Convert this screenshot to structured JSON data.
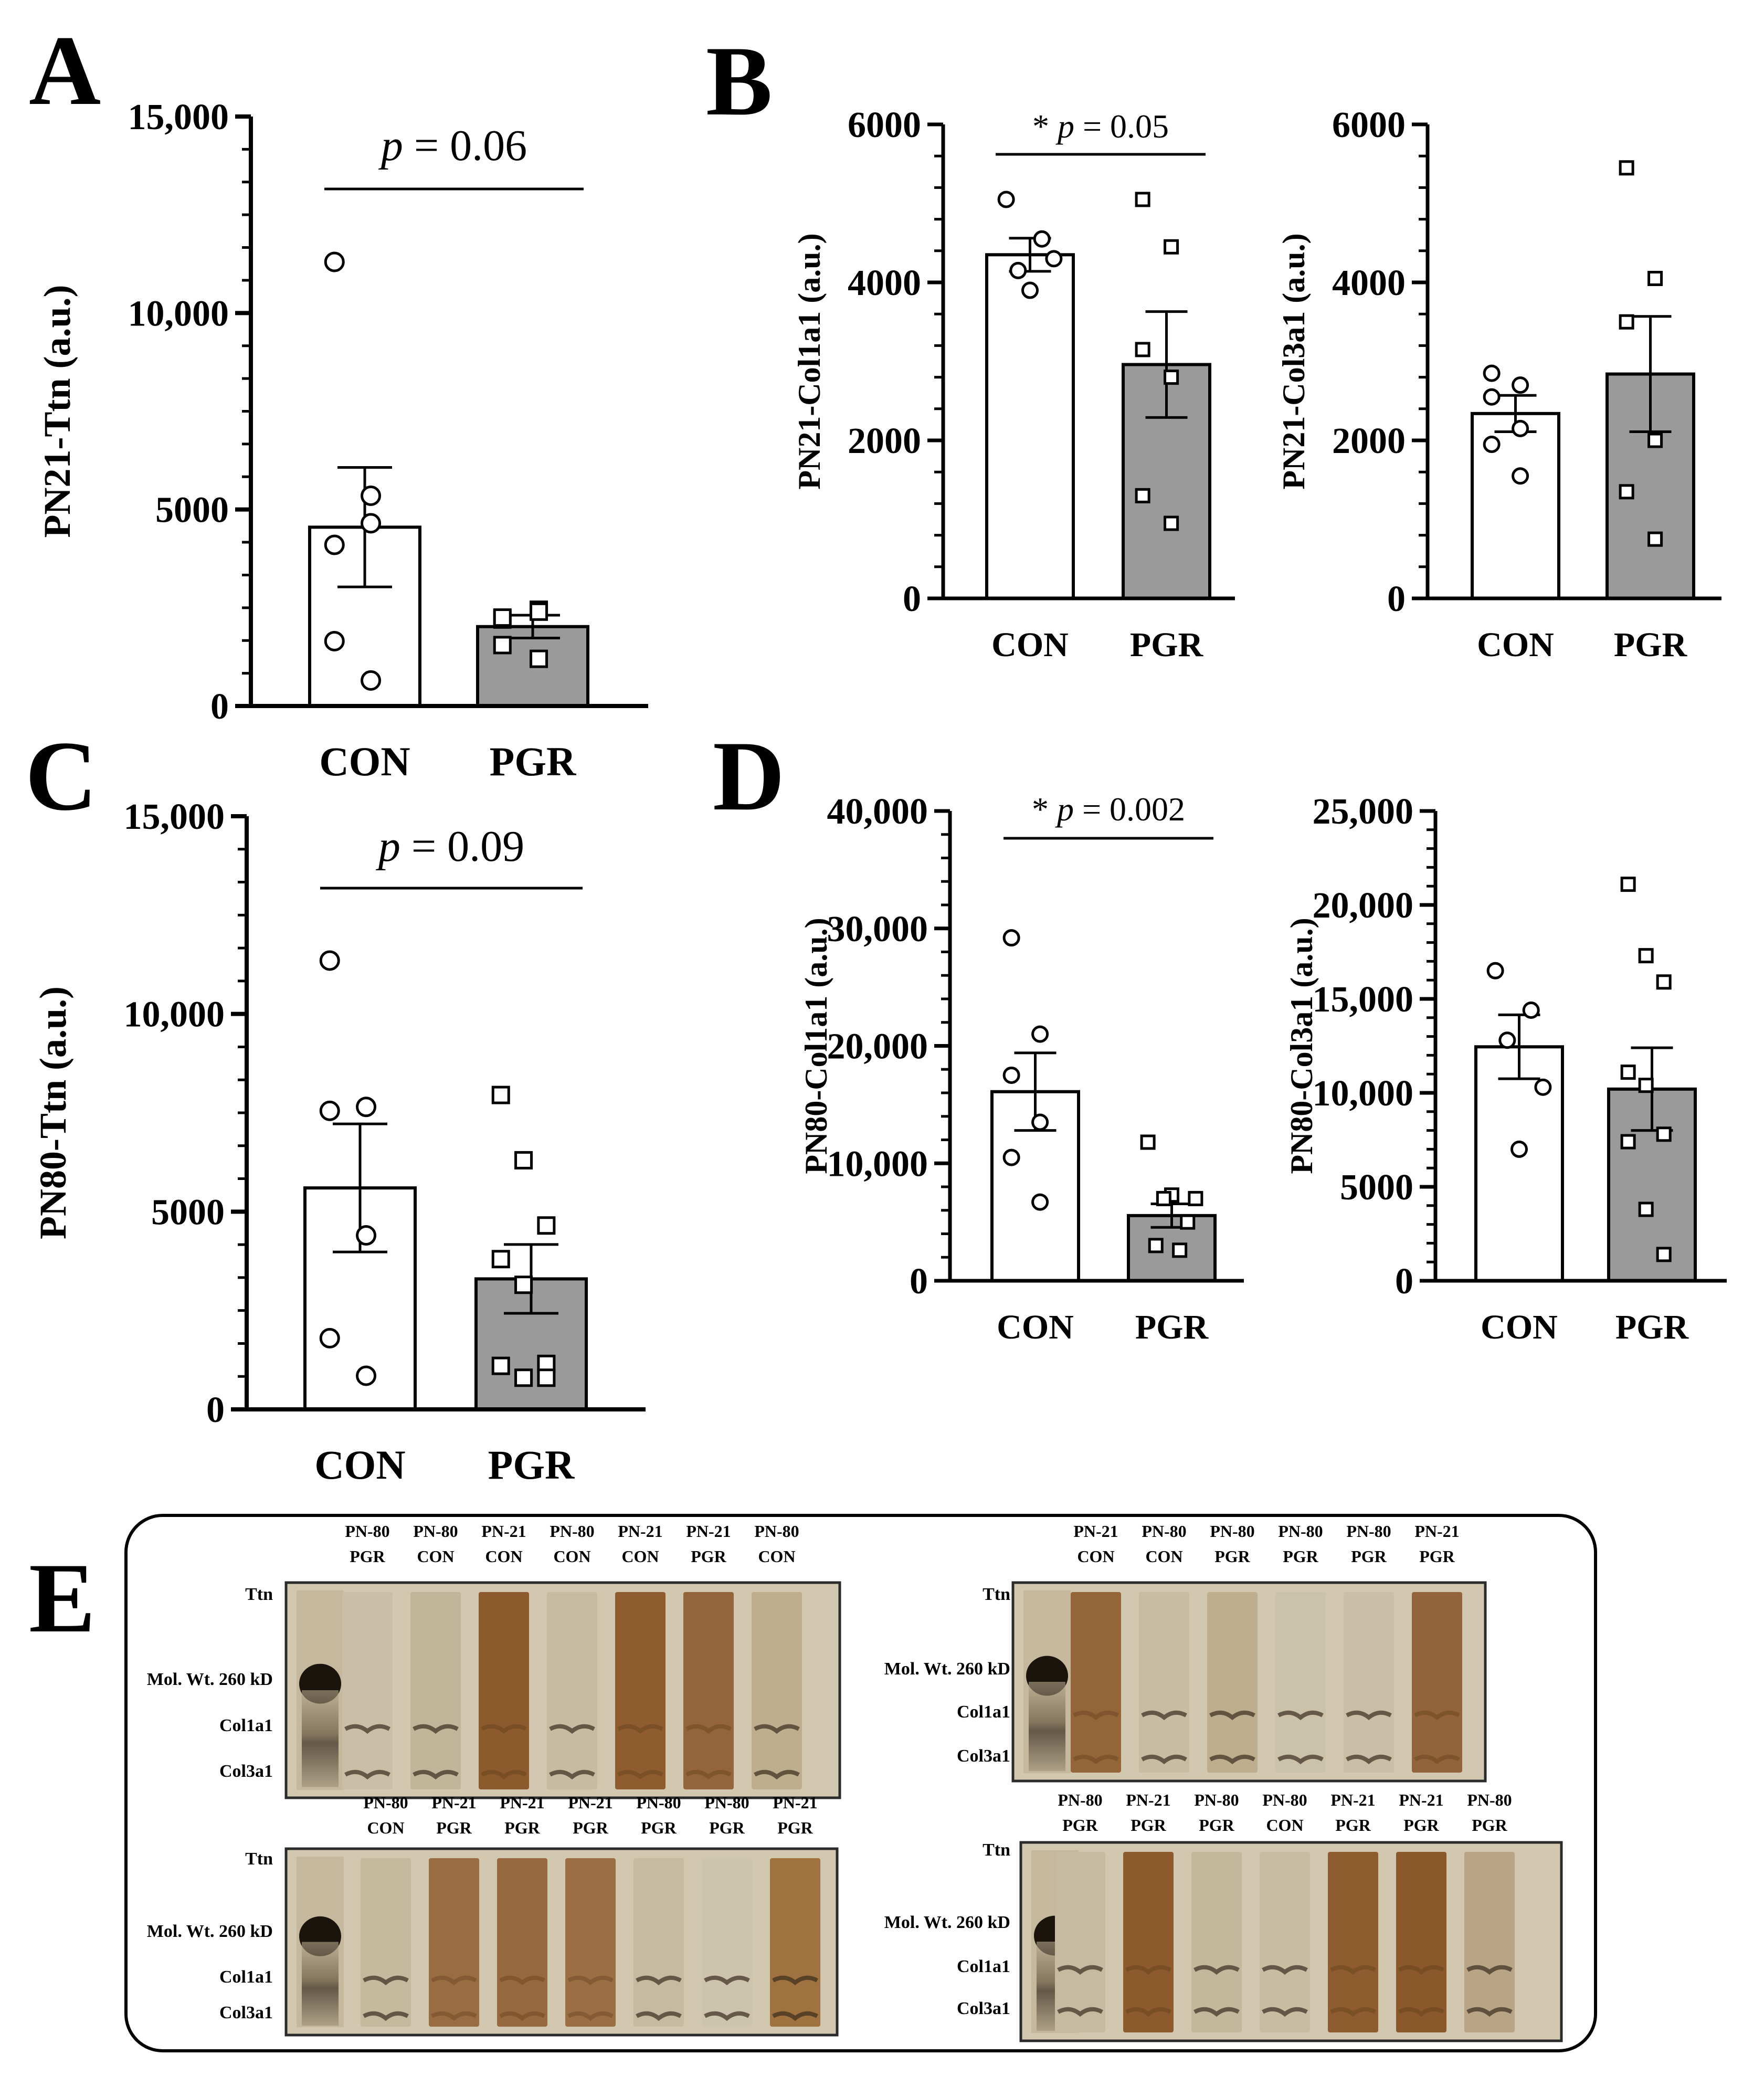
{
  "figure": {
    "panel_labels": [
      "A",
      "B",
      "C",
      "D",
      "E"
    ]
  },
  "chart_data": [
    {
      "id": "A",
      "type": "bar",
      "ylabel": "PN21-Ttn (a.u.)",
      "ylim": [
        0,
        15000
      ],
      "yticks": [
        {
          "v": 0,
          "label": "0"
        },
        {
          "v": 5000,
          "label": "5000"
        },
        {
          "v": 10000,
          "label": "10,000"
        },
        {
          "v": 15000,
          "label": "15,000"
        }
      ],
      "categories": [
        "CON",
        "PGR"
      ],
      "means": [
        4550,
        2020
      ],
      "sem": [
        1520,
        290
      ],
      "points": [
        [
          11300,
          5350,
          4100,
          4650,
          1650,
          650
        ],
        [
          2200,
          2450,
          2250,
          2400,
          1550,
          1200
        ]
      ],
      "annotation": {
        "italic": "p",
        "rest": " = 0.06"
      },
      "colors": [
        "#ffffff",
        "#9a9a9a"
      ]
    },
    {
      "id": "B1",
      "type": "bar",
      "ylabel": "PN21-Col1a1 (a.u.)",
      "ylim": [
        0,
        6000
      ],
      "yticks": [
        {
          "v": 0,
          "label": "0"
        },
        {
          "v": 2000,
          "label": "2000"
        },
        {
          "v": 4000,
          "label": "4000"
        },
        {
          "v": 6000,
          "label": "6000"
        }
      ],
      "categories": [
        "CON",
        "PGR"
      ],
      "means": [
        4350,
        2960
      ],
      "sem": [
        210,
        670
      ],
      "points": [
        [
          5050,
          4550,
          4150,
          4300,
          3900
        ],
        [
          5050,
          4450,
          3150,
          2800,
          1300,
          950
        ]
      ],
      "annotation": {
        "prefix": "* ",
        "italic": "p",
        "rest": " = 0.05"
      },
      "colors": [
        "#ffffff",
        "#9a9a9a"
      ]
    },
    {
      "id": "B2",
      "type": "bar",
      "ylabel": "PN21-Col3a1 (a.u.)",
      "ylim": [
        0,
        6000
      ],
      "yticks": [
        {
          "v": 0,
          "label": "0"
        },
        {
          "v": 2000,
          "label": "2000"
        },
        {
          "v": 4000,
          "label": "4000"
        },
        {
          "v": 6000,
          "label": "6000"
        }
      ],
      "categories": [
        "CON",
        "PGR"
      ],
      "means": [
        2340,
        2840
      ],
      "sem": [
        230,
        730
      ],
      "points": [
        [
          2850,
          2700,
          2550,
          2150,
          1950,
          1550
        ],
        [
          5450,
          4050,
          3500,
          2000,
          1350,
          750
        ]
      ],
      "colors": [
        "#ffffff",
        "#9a9a9a"
      ]
    },
    {
      "id": "C",
      "type": "bar",
      "ylabel": "PN80-Ttn (a.u.)",
      "ylim": [
        0,
        15000
      ],
      "yticks": [
        {
          "v": 0,
          "label": "0"
        },
        {
          "v": 5000,
          "label": "5000"
        },
        {
          "v": 10000,
          "label": "10,000"
        },
        {
          "v": 15000,
          "label": "15,000"
        }
      ],
      "categories": [
        "CON",
        "PGR"
      ],
      "means": [
        5600,
        3300
      ],
      "sem": [
        1620,
        870
      ],
      "points": [
        [
          11350,
          7650,
          7550,
          4400,
          1800,
          850
        ],
        [
          7950,
          6300,
          4650,
          3800,
          3150,
          1150,
          1100,
          800,
          800
        ]
      ],
      "annotation": {
        "italic": "p",
        "rest": " = 0.09"
      },
      "colors": [
        "#ffffff",
        "#9a9a9a"
      ]
    },
    {
      "id": "D1",
      "type": "bar",
      "ylabel": "PN80-Col1a1 (a.u.)",
      "ylim": [
        0,
        40000
      ],
      "yticks": [
        {
          "v": 0,
          "label": "0"
        },
        {
          "v": 10000,
          "label": "10,000"
        },
        {
          "v": 20000,
          "label": "20,000"
        },
        {
          "v": 30000,
          "label": "30,000"
        },
        {
          "v": 40000,
          "label": "40,000"
        }
      ],
      "categories": [
        "CON",
        "PGR"
      ],
      "means": [
        16100,
        5550
      ],
      "sem": [
        3300,
        1000
      ],
      "points": [
        [
          29200,
          21000,
          17500,
          13500,
          10500,
          6700
        ],
        [
          11800,
          7300,
          7000,
          7000,
          5000,
          3000,
          2600
        ]
      ],
      "annotation": {
        "prefix": "* ",
        "italic": "p",
        "rest": " = 0.002"
      },
      "colors": [
        "#ffffff",
        "#9a9a9a"
      ]
    },
    {
      "id": "D2",
      "type": "bar",
      "ylabel": "PN80-Col3a1 (a.u.)",
      "ylim": [
        0,
        25000
      ],
      "yticks": [
        {
          "v": 0,
          "label": "0"
        },
        {
          "v": 5000,
          "label": "5000"
        },
        {
          "v": 10000,
          "label": "10,000"
        },
        {
          "v": 15000,
          "label": "15,000"
        },
        {
          "v": 20000,
          "label": "20,000"
        },
        {
          "v": 25000,
          "label": "25,000"
        }
      ],
      "categories": [
        "CON",
        "PGR"
      ],
      "means": [
        12450,
        10200
      ],
      "sem": [
        1700,
        2200
      ],
      "points": [
        [
          16500,
          14400,
          12800,
          10300,
          7000
        ],
        [
          21100,
          17300,
          15900,
          11100,
          10400,
          7800,
          7400,
          3800,
          1400
        ]
      ],
      "colors": [
        "#ffffff",
        "#9a9a9a"
      ]
    }
  ],
  "gels": [
    {
      "lanes": [
        {
          "line1": "PN-80",
          "line2": "PGR"
        },
        {
          "line1": "PN-80",
          "line2": "CON"
        },
        {
          "line1": "PN-21",
          "line2": "CON"
        },
        {
          "line1": "PN-80",
          "line2": "CON"
        },
        {
          "line1": "PN-21",
          "line2": "CON"
        },
        {
          "line1": "PN-21",
          "line2": "PGR"
        },
        {
          "line1": "PN-80",
          "line2": "CON"
        }
      ],
      "row_labels": [
        "Ttn",
        "Mol. Wt. 260 kD",
        "Col1a1",
        "Col3a1"
      ],
      "lane_tones": [
        "#c9bfa6",
        "#c2b69a",
        "#8c5a2c",
        "#c7bca2",
        "#8e5c2e",
        "#94643a",
        "#bfae8e"
      ]
    },
    {
      "lanes": [
        {
          "line1": "PN-21",
          "line2": "CON"
        },
        {
          "line1": "PN-80",
          "line2": "CON"
        },
        {
          "line1": "PN-80",
          "line2": "PGR"
        },
        {
          "line1": "PN-80",
          "line2": "PGR"
        },
        {
          "line1": "PN-80",
          "line2": "PGR"
        },
        {
          "line1": "PN-21",
          "line2": "PGR"
        }
      ],
      "row_labels": [
        "Ttn",
        "Mol. Wt. 260 kD",
        "Col1a1",
        "Col3a1"
      ],
      "lane_tones": [
        "#95653a",
        "#c8bda3",
        "#bfae8e",
        "#cbc2aa",
        "#c9bfa6",
        "#93633a"
      ]
    },
    {
      "lanes": [
        {
          "line1": "PN-80",
          "line2": "CON"
        },
        {
          "line1": "PN-21",
          "line2": "PGR"
        },
        {
          "line1": "PN-21",
          "line2": "PGR"
        },
        {
          "line1": "PN-21",
          "line2": "PGR"
        },
        {
          "line1": "PN-80",
          "line2": "PGR"
        },
        {
          "line1": "PN-80",
          "line2": "PGR"
        },
        {
          "line1": "PN-21",
          "line2": "PGR"
        }
      ],
      "row_labels": [
        "Ttn",
        "Mol. Wt. 260 kD",
        "Col1a1",
        "Col3a1"
      ],
      "lane_tones": [
        "#c5b99e",
        "#9a6c42",
        "#98683e",
        "#9c6e44",
        "#c6bba0",
        "#cdc4ad",
        "#a0723f"
      ]
    },
    {
      "lanes": [
        {
          "line1": "PN-80",
          "line2": "PGR"
        },
        {
          "line1": "PN-21",
          "line2": "PGR"
        },
        {
          "line1": "PN-80",
          "line2": "PGR"
        },
        {
          "line1": "PN-80",
          "line2": "CON"
        },
        {
          "line1": "PN-21",
          "line2": "PGR"
        },
        {
          "line1": "PN-21",
          "line2": "PGR"
        },
        {
          "line1": "PN-80",
          "line2": "PGR"
        }
      ],
      "row_labels": [
        "Ttn",
        "Mol. Wt. 260 kD",
        "Col1a1",
        "Col3a1"
      ],
      "lane_tones": [
        "#c6bba0",
        "#8c5a2c",
        "#c4b89c",
        "#c8bda3",
        "#8e5c2e",
        "#8a582a",
        "#b9a586"
      ]
    }
  ]
}
